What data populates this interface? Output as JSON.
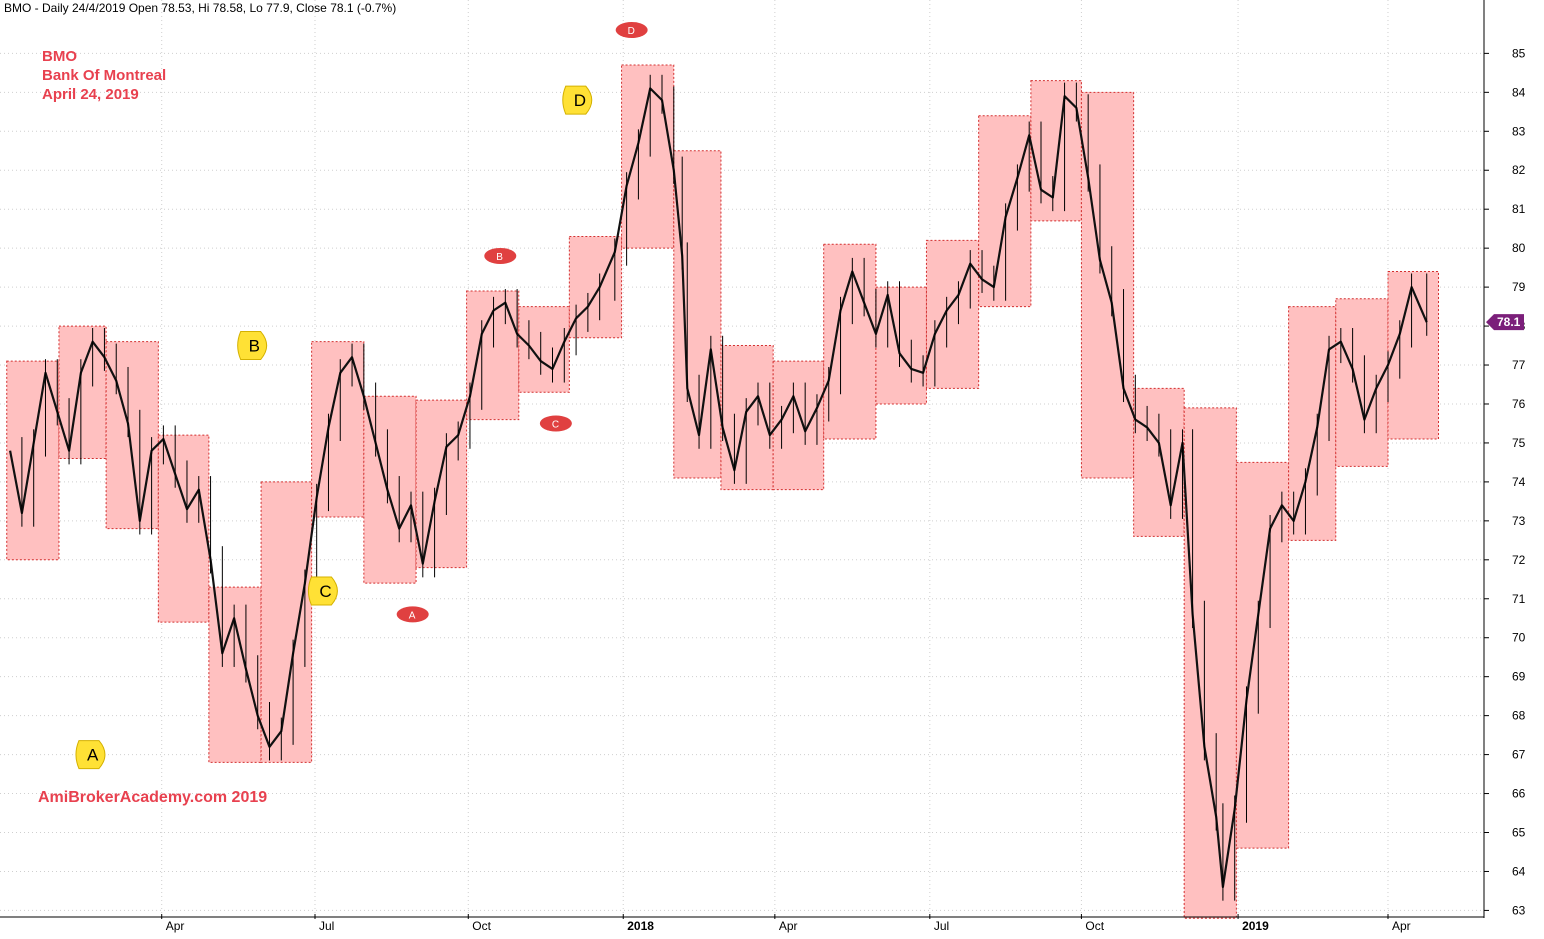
{
  "chart_data": {
    "type": "candlestick",
    "header": "BMO - Daily 24/4/2019 Open 78.53, Hi 78.58, Lo 77.9, Close 78.1 (-0.7%)",
    "title_lines": [
      "BMO",
      "Bank Of Montreal",
      "April 24, 2019"
    ],
    "watermark": "AmiBrokerAcademy.com  2019",
    "last_price_label": "78.1",
    "last_price": 78.1,
    "ylim": [
      62.6,
      85.6
    ],
    "y_ticks": [
      63,
      64,
      65,
      66,
      67,
      68,
      69,
      70,
      71,
      72,
      73,
      74,
      75,
      76,
      77,
      78,
      79,
      80,
      81,
      82,
      83,
      84,
      85
    ],
    "x_ticks": [
      {
        "label": "Apr",
        "date": "2017-04-03",
        "bold": false
      },
      {
        "label": "Jul",
        "date": "2017-07-03",
        "bold": false
      },
      {
        "label": "Oct",
        "date": "2017-10-02",
        "bold": false
      },
      {
        "label": "2018",
        "date": "2018-01-02",
        "bold": true
      },
      {
        "label": "Apr",
        "date": "2018-04-02",
        "bold": false
      },
      {
        "label": "Jul",
        "date": "2018-07-03",
        "bold": false
      },
      {
        "label": "Oct",
        "date": "2018-10-01",
        "bold": false
      },
      {
        "label": "2019",
        "date": "2019-01-02",
        "bold": true
      },
      {
        "label": "Apr",
        "date": "2019-04-01",
        "bold": false
      }
    ],
    "monthly_ranges": [
      {
        "month": "2017-01",
        "high": 77.1,
        "low": 72.0
      },
      {
        "month": "2017-02",
        "high": 78.0,
        "low": 74.6
      },
      {
        "month": "2017-03",
        "high": 77.6,
        "low": 72.8
      },
      {
        "month": "2017-04",
        "high": 75.2,
        "low": 70.4
      },
      {
        "month": "2017-05",
        "high": 71.3,
        "low": 66.8
      },
      {
        "month": "2017-06",
        "high": 74.0,
        "low": 66.8
      },
      {
        "month": "2017-07",
        "high": 77.6,
        "low": 73.1
      },
      {
        "month": "2017-08",
        "high": 76.2,
        "low": 71.4
      },
      {
        "month": "2017-09",
        "high": 76.1,
        "low": 71.8
      },
      {
        "month": "2017-10",
        "high": 78.9,
        "low": 75.6
      },
      {
        "month": "2017-11",
        "high": 78.5,
        "low": 76.3
      },
      {
        "month": "2017-12",
        "high": 80.3,
        "low": 77.7
      },
      {
        "month": "2018-01",
        "high": 84.7,
        "low": 80.0
      },
      {
        "month": "2018-02",
        "high": 82.5,
        "low": 74.1
      },
      {
        "month": "2018-03",
        "high": 77.5,
        "low": 73.8
      },
      {
        "month": "2018-04",
        "high": 77.1,
        "low": 73.8
      },
      {
        "month": "2018-05",
        "high": 80.1,
        "low": 75.1
      },
      {
        "month": "2018-06",
        "high": 79.0,
        "low": 76.0
      },
      {
        "month": "2018-07",
        "high": 80.2,
        "low": 76.4
      },
      {
        "month": "2018-08",
        "high": 83.4,
        "low": 78.5
      },
      {
        "month": "2018-09",
        "high": 84.3,
        "low": 80.7
      },
      {
        "month": "2018-10",
        "high": 84.0,
        "low": 74.1
      },
      {
        "month": "2018-11",
        "high": 76.4,
        "low": 72.6
      },
      {
        "month": "2018-12",
        "high": 75.9,
        "low": 62.8
      },
      {
        "month": "2019-01",
        "high": 74.5,
        "low": 64.6
      },
      {
        "month": "2019-02",
        "high": 78.5,
        "low": 72.5
      },
      {
        "month": "2019-03",
        "high": 78.7,
        "low": 74.4
      },
      {
        "month": "2019-04",
        "high": 79.4,
        "low": 75.1
      }
    ],
    "price_path": [
      [
        "2017-01-03",
        74.8
      ],
      [
        "2017-01-10",
        73.2
      ],
      [
        "2017-01-17",
        75.0
      ],
      [
        "2017-01-24",
        76.8
      ],
      [
        "2017-01-31",
        75.8
      ],
      [
        "2017-02-07",
        74.8
      ],
      [
        "2017-02-14",
        76.8
      ],
      [
        "2017-02-21",
        77.6
      ],
      [
        "2017-02-28",
        77.2
      ],
      [
        "2017-03-07",
        76.6
      ],
      [
        "2017-03-14",
        75.5
      ],
      [
        "2017-03-21",
        73.0
      ],
      [
        "2017-03-28",
        74.8
      ],
      [
        "2017-04-04",
        75.1
      ],
      [
        "2017-04-11",
        74.2
      ],
      [
        "2017-04-18",
        73.3
      ],
      [
        "2017-04-25",
        73.8
      ],
      [
        "2017-05-02",
        72.0
      ],
      [
        "2017-05-09",
        69.6
      ],
      [
        "2017-05-16",
        70.5
      ],
      [
        "2017-05-23",
        69.2
      ],
      [
        "2017-05-30",
        68.0
      ],
      [
        "2017-06-06",
        67.2
      ],
      [
        "2017-06-13",
        67.6
      ],
      [
        "2017-06-20",
        69.6
      ],
      [
        "2017-06-27",
        71.4
      ],
      [
        "2017-07-04",
        73.6
      ],
      [
        "2017-07-11",
        75.4
      ],
      [
        "2017-07-18",
        76.8
      ],
      [
        "2017-07-25",
        77.2
      ],
      [
        "2017-08-01",
        76.2
      ],
      [
        "2017-08-08",
        75.0
      ],
      [
        "2017-08-15",
        73.8
      ],
      [
        "2017-08-22",
        72.8
      ],
      [
        "2017-08-29",
        73.4
      ],
      [
        "2017-09-05",
        71.9
      ],
      [
        "2017-09-12",
        73.5
      ],
      [
        "2017-09-19",
        74.9
      ],
      [
        "2017-09-26",
        75.2
      ],
      [
        "2017-10-03",
        76.2
      ],
      [
        "2017-10-10",
        77.8
      ],
      [
        "2017-10-17",
        78.4
      ],
      [
        "2017-10-24",
        78.6
      ],
      [
        "2017-10-31",
        77.8
      ],
      [
        "2017-11-07",
        77.5
      ],
      [
        "2017-11-14",
        77.1
      ],
      [
        "2017-11-21",
        76.9
      ],
      [
        "2017-11-28",
        77.6
      ],
      [
        "2017-12-05",
        78.2
      ],
      [
        "2017-12-12",
        78.5
      ],
      [
        "2017-12-19",
        79.0
      ],
      [
        "2017-12-28",
        79.9
      ],
      [
        "2018-01-04",
        81.6
      ],
      [
        "2018-01-11",
        82.7
      ],
      [
        "2018-01-18",
        84.1
      ],
      [
        "2018-01-25",
        83.8
      ],
      [
        "2018-02-01",
        82.0
      ],
      [
        "2018-02-06",
        79.8
      ],
      [
        "2018-02-09",
        76.4
      ],
      [
        "2018-02-16",
        75.2
      ],
      [
        "2018-02-23",
        77.4
      ],
      [
        "2018-03-02",
        75.4
      ],
      [
        "2018-03-09",
        74.3
      ],
      [
        "2018-03-16",
        75.8
      ],
      [
        "2018-03-23",
        76.2
      ],
      [
        "2018-03-30",
        75.2
      ],
      [
        "2018-04-06",
        75.6
      ],
      [
        "2018-04-13",
        76.2
      ],
      [
        "2018-04-20",
        75.3
      ],
      [
        "2018-04-27",
        75.9
      ],
      [
        "2018-05-04",
        76.6
      ],
      [
        "2018-05-11",
        78.4
      ],
      [
        "2018-05-18",
        79.4
      ],
      [
        "2018-05-25",
        78.6
      ],
      [
        "2018-06-01",
        77.8
      ],
      [
        "2018-06-08",
        78.8
      ],
      [
        "2018-06-15",
        77.3
      ],
      [
        "2018-06-22",
        76.9
      ],
      [
        "2018-06-29",
        76.8
      ],
      [
        "2018-07-06",
        77.8
      ],
      [
        "2018-07-13",
        78.4
      ],
      [
        "2018-07-20",
        78.8
      ],
      [
        "2018-07-27",
        79.6
      ],
      [
        "2018-08-03",
        79.2
      ],
      [
        "2018-08-10",
        79.0
      ],
      [
        "2018-08-17",
        80.8
      ],
      [
        "2018-08-24",
        81.8
      ],
      [
        "2018-08-31",
        82.9
      ],
      [
        "2018-09-07",
        81.5
      ],
      [
        "2018-09-14",
        81.3
      ],
      [
        "2018-09-21",
        83.9
      ],
      [
        "2018-09-28",
        83.6
      ],
      [
        "2018-10-05",
        81.8
      ],
      [
        "2018-10-12",
        79.7
      ],
      [
        "2018-10-19",
        78.6
      ],
      [
        "2018-10-26",
        76.4
      ],
      [
        "2018-11-02",
        75.6
      ],
      [
        "2018-11-09",
        75.4
      ],
      [
        "2018-11-16",
        75.0
      ],
      [
        "2018-11-23",
        73.4
      ],
      [
        "2018-11-30",
        75.0
      ],
      [
        "2018-12-06",
        70.6
      ],
      [
        "2018-12-13",
        67.2
      ],
      [
        "2018-12-20",
        65.4
      ],
      [
        "2018-12-24",
        63.6
      ],
      [
        "2018-12-31",
        65.6
      ],
      [
        "2019-01-07",
        68.4
      ],
      [
        "2019-01-14",
        70.6
      ],
      [
        "2019-01-21",
        72.8
      ],
      [
        "2019-01-28",
        73.4
      ],
      [
        "2019-02-04",
        73.0
      ],
      [
        "2019-02-11",
        74.0
      ],
      [
        "2019-02-18",
        75.4
      ],
      [
        "2019-02-25",
        77.4
      ],
      [
        "2019-03-04",
        77.6
      ],
      [
        "2019-03-11",
        76.9
      ],
      [
        "2019-03-18",
        75.6
      ],
      [
        "2019-03-25",
        76.4
      ],
      [
        "2019-04-01",
        77.0
      ],
      [
        "2019-04-08",
        77.8
      ],
      [
        "2019-04-15",
        79.0
      ],
      [
        "2019-04-24",
        78.1
      ]
    ],
    "callouts_yellow": [
      {
        "label": "A",
        "date": "2017-02-20",
        "price": 67.0
      },
      {
        "label": "B",
        "date": "2017-05-27",
        "price": 77.5
      },
      {
        "label": "C",
        "date": "2017-07-08",
        "price": 71.2
      },
      {
        "label": "D",
        "date": "2017-12-06",
        "price": 83.8
      }
    ],
    "callouts_red": [
      {
        "label": "D",
        "date": "2018-01-07",
        "price": 85.6
      },
      {
        "label": "B",
        "date": "2017-10-21",
        "price": 79.8
      },
      {
        "label": "C",
        "date": "2017-11-23",
        "price": 75.5
      },
      {
        "label": "A",
        "date": "2017-08-30",
        "price": 70.6
      }
    ]
  }
}
